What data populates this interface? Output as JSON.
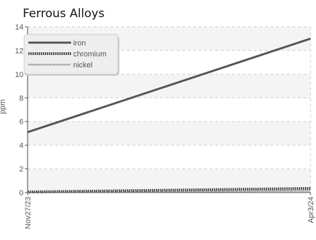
{
  "chart_data": {
    "type": "line",
    "title": "Ferrous Alloys",
    "ylabel": "ppm",
    "xlabel": "",
    "x_tick_labels": [
      "Nov27/23",
      "Apr3/24"
    ],
    "y_ticks": [
      0,
      2,
      4,
      6,
      8,
      10,
      12,
      14
    ],
    "ylim": [
      0,
      14
    ],
    "grid": true,
    "legend_position": "top-left",
    "series": [
      {
        "name": "iron",
        "color": "#555555",
        "style": "solid",
        "x": [
          "Nov27/23",
          "Apr3/24"
        ],
        "values": [
          5.1,
          13.0
        ]
      },
      {
        "name": "chromium",
        "color": "#555555",
        "style": "dense-dashed",
        "x": [
          "Nov27/23",
          "Apr3/24"
        ],
        "values": [
          0.05,
          0.35
        ]
      },
      {
        "name": "nickel",
        "color": "#777777",
        "style": "dotted",
        "x": [
          "Nov27/23",
          "Apr3/24"
        ],
        "values": [
          0.0,
          0.15
        ]
      }
    ]
  }
}
